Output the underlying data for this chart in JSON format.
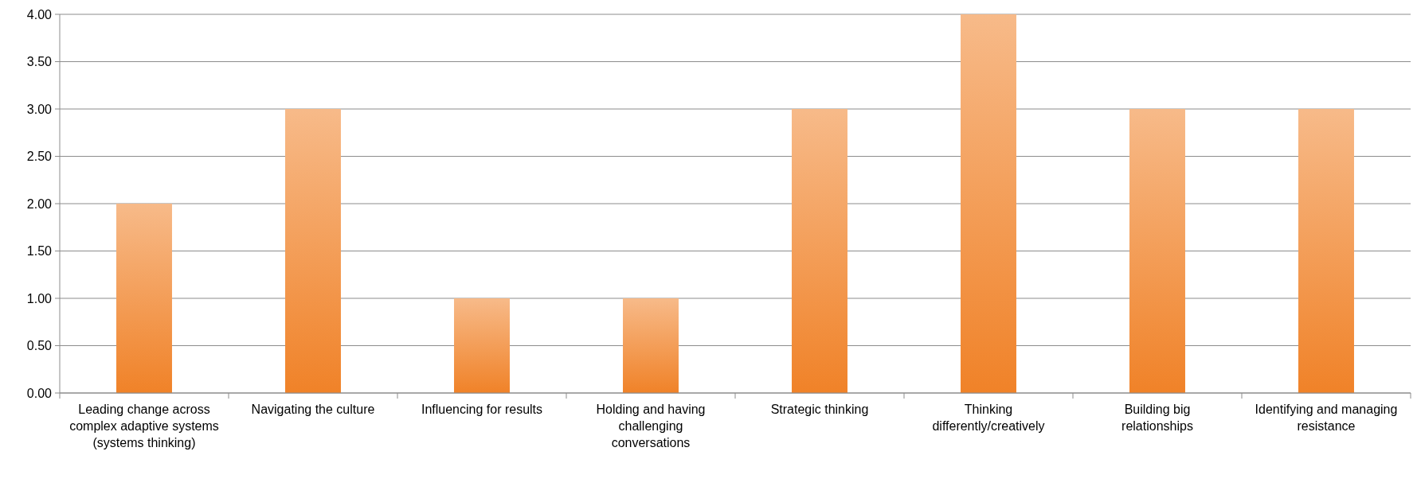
{
  "chart_data": {
    "type": "bar",
    "categories": [
      "Leading change across complex adaptive systems (systems thinking)",
      "Navigating the culture",
      "Influencing for results",
      "Holding and having challenging conversations",
      "Strategic thinking",
      "Thinking differently/creatively",
      "Building big relationships",
      "Identifying and managing resistance"
    ],
    "values": [
      2,
      3,
      1,
      1,
      3,
      4,
      3,
      3
    ],
    "color": "#f08228",
    "ylim": [
      0,
      4
    ],
    "yticks": [
      {
        "value": 0,
        "label": "0.00"
      },
      {
        "value": 0.5,
        "label": "0.50"
      },
      {
        "value": 1,
        "label": "1.00"
      },
      {
        "value": 1.5,
        "label": "1.50"
      },
      {
        "value": 2,
        "label": "2.00"
      },
      {
        "value": 2.5,
        "label": "2.50"
      },
      {
        "value": 3,
        "label": "3.00"
      },
      {
        "value": 3.5,
        "label": "3.50"
      },
      {
        "value": 4,
        "label": "4.00"
      }
    ],
    "grid": "y"
  }
}
